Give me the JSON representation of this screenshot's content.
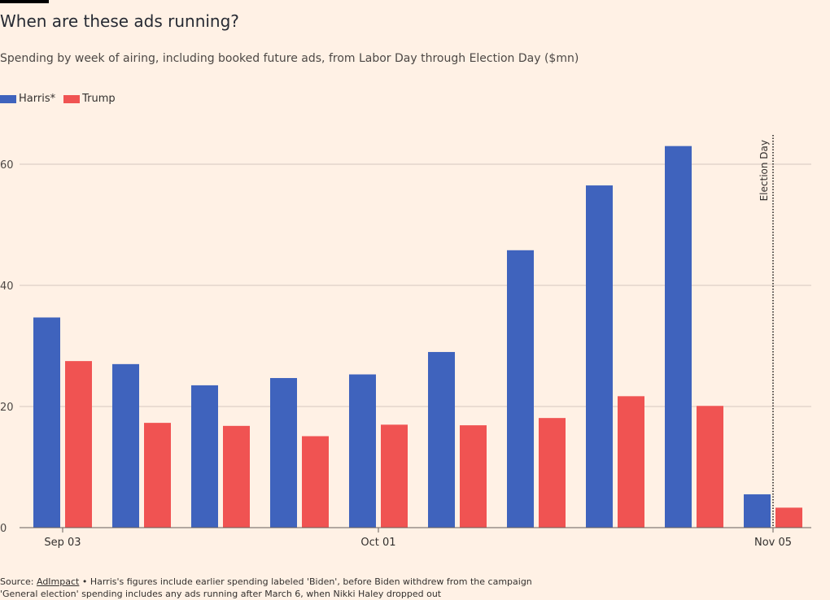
{
  "header": {
    "title": "When are these ads running?",
    "subtitle": "Spending by week of airing, including booked future ads, from Labor Day through Election Day ($mn)"
  },
  "colors": {
    "harris": "#3f63bd",
    "trump": "#f05352",
    "grid": "#d4c8bf",
    "background": "#fff1e5"
  },
  "legend": [
    {
      "label": "Harris*",
      "color": "#3f63bd"
    },
    {
      "label": "Trump",
      "color": "#f05352"
    }
  ],
  "footer": {
    "source_prefix": "Source: ",
    "source_link": "AdImpact",
    "source_note": " • Harris's figures include earlier spending labeled 'Biden', before Biden withdrew from the campaign",
    "footnote": "'General election' spending includes any ads running after March 6, when Nikki Haley dropped out"
  },
  "chart_data": {
    "type": "bar",
    "weeks": [
      "2024-09-03",
      "2024-09-10",
      "2024-09-17",
      "2024-09-24",
      "2024-10-01",
      "2024-10-08",
      "2024-10-15",
      "2024-10-22",
      "2024-10-29",
      "2024-11-05"
    ],
    "series": [
      {
        "name": "Harris*",
        "values": [
          34.7,
          27.0,
          23.5,
          24.7,
          25.3,
          29.0,
          45.8,
          56.5,
          63.0,
          5.5
        ]
      },
      {
        "name": "Trump",
        "values": [
          27.5,
          17.3,
          16.8,
          15.1,
          17.0,
          16.9,
          18.1,
          21.7,
          20.1,
          3.3
        ]
      }
    ],
    "yticks": [
      0,
      20,
      40,
      60
    ],
    "ylim": [
      0,
      65
    ],
    "xtick_labels": [
      {
        "label": "Sep 03",
        "week": "2024-09-03"
      },
      {
        "label": "Oct 01",
        "week": "2024-10-01"
      },
      {
        "label": "Nov 05",
        "week": "2024-11-05"
      }
    ],
    "annotation": {
      "label": "Election Day",
      "week": "2024-11-05"
    },
    "grid": true,
    "legend_position": "top-left"
  }
}
